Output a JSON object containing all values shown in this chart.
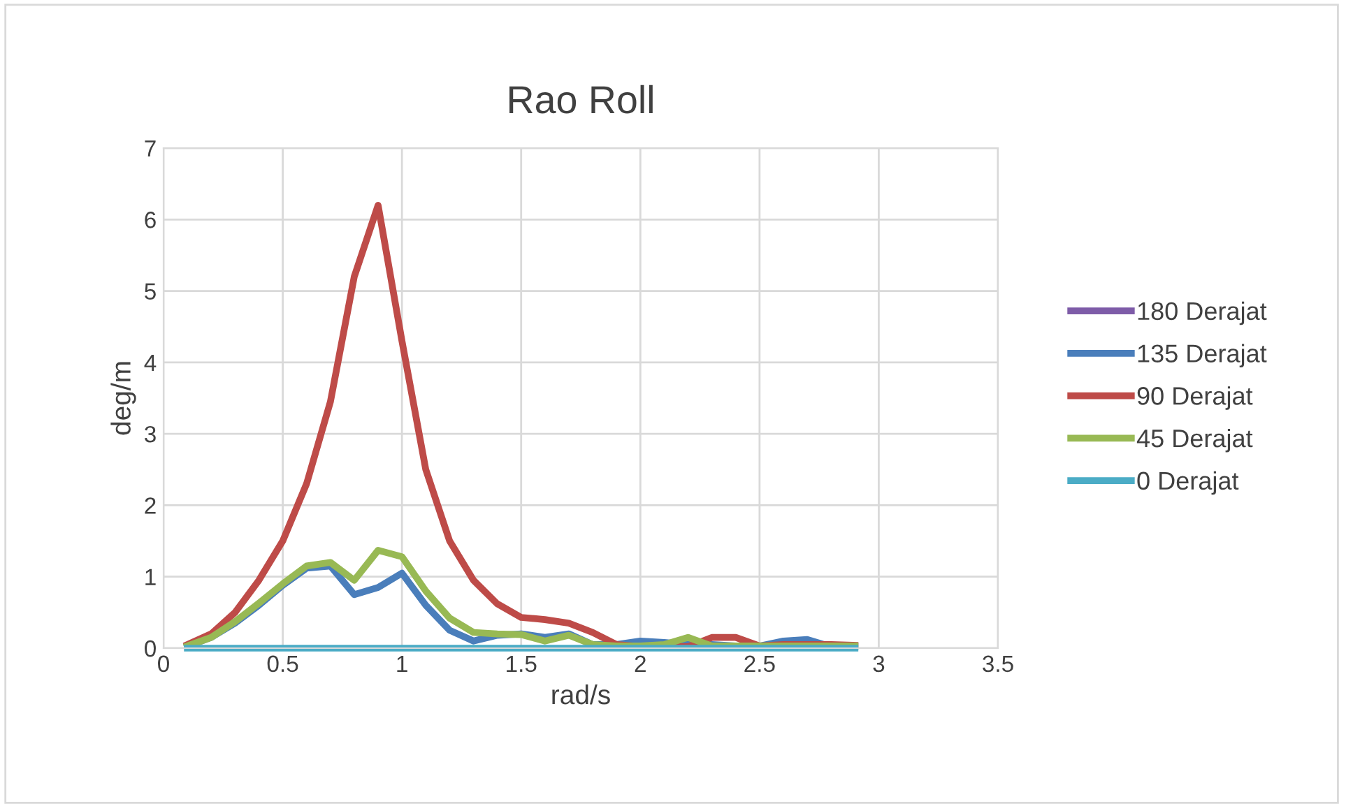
{
  "chart_data": {
    "type": "line",
    "title": "Rao Roll",
    "xlabel": "rad/s",
    "ylabel": "deg/m",
    "x": [
      0.1,
      0.2,
      0.3,
      0.4,
      0.5,
      0.6,
      0.7,
      0.8,
      0.9,
      1.0,
      1.1,
      1.2,
      1.3,
      1.4,
      1.5,
      1.6,
      1.7,
      1.8,
      1.9,
      2.0,
      2.1,
      2.2,
      2.3,
      2.4,
      2.5,
      2.6,
      2.7,
      2.8,
      2.9
    ],
    "series": [
      {
        "name": "180 Derajat",
        "color": "#7e5ca8",
        "values": [
          null,
          null,
          null,
          null,
          null,
          null,
          null,
          null,
          null,
          null,
          null,
          null,
          null,
          null,
          null,
          null,
          null,
          null,
          null,
          null,
          null,
          null,
          null,
          null,
          null,
          null,
          null,
          null,
          null
        ]
      },
      {
        "name": "135 Derajat",
        "color": "#4a7ebb",
        "values": [
          0.03,
          0.15,
          0.35,
          0.6,
          0.88,
          1.12,
          1.15,
          0.75,
          0.85,
          1.05,
          0.6,
          0.25,
          0.1,
          0.18,
          0.2,
          0.15,
          0.2,
          0.05,
          0.05,
          0.1,
          0.08,
          0.05,
          0.05,
          0.03,
          0.03,
          0.1,
          0.12,
          0.02,
          0.02
        ]
      },
      {
        "name": "90 Derajat",
        "color": "#be4b48",
        "values": [
          0.05,
          0.2,
          0.5,
          0.95,
          1.5,
          2.3,
          3.45,
          5.2,
          6.2,
          4.3,
          2.5,
          1.5,
          0.95,
          0.62,
          0.43,
          0.4,
          0.35,
          0.22,
          0.05,
          0.02,
          0.02,
          0.02,
          0.15,
          0.15,
          0.03,
          0.05,
          0.05,
          0.05,
          0.04
        ]
      },
      {
        "name": "45 Derajat",
        "color": "#98b954",
        "values": [
          0.03,
          0.15,
          0.37,
          0.63,
          0.9,
          1.15,
          1.2,
          0.95,
          1.37,
          1.28,
          0.8,
          0.42,
          0.22,
          0.2,
          0.19,
          0.1,
          0.18,
          0.05,
          0.03,
          0.03,
          0.05,
          0.15,
          0.03,
          0.03,
          0.03,
          0.03,
          0.03,
          0.03,
          0.03
        ]
      },
      {
        "name": "0 Derajat",
        "color": "#4bacc6",
        "values": [
          0,
          0,
          0,
          0,
          0,
          0,
          0,
          0,
          0,
          0,
          0,
          0,
          0,
          0,
          0,
          0,
          0,
          0,
          0,
          0,
          0,
          0,
          0,
          0,
          0,
          0,
          0,
          0,
          0
        ]
      }
    ],
    "xlim": [
      0,
      3.5
    ],
    "xticks": [
      0,
      0.5,
      1,
      1.5,
      2,
      2.5,
      3,
      3.5
    ],
    "ylim": [
      0,
      7
    ],
    "yticks": [
      0,
      1,
      2,
      3,
      4,
      5,
      6,
      7
    ],
    "grid": true,
    "legend": "right",
    "marker": "none",
    "line_style": "solid"
  }
}
